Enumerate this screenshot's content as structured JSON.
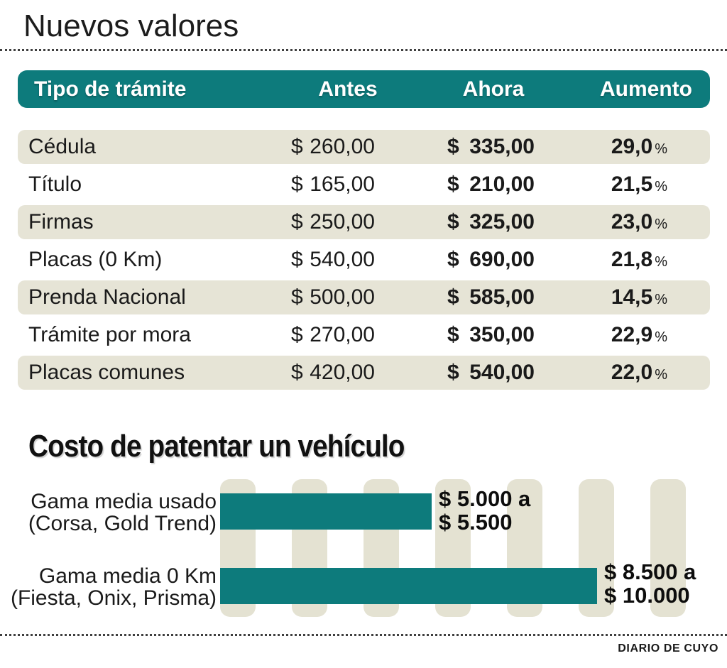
{
  "title": "Nuevos valores",
  "credit": "DIARIO DE CUYO",
  "colors": {
    "teal": "#0d7b7c",
    "beige_row": "#e6e4d6",
    "beige_grid": "#e4e2d2",
    "text": "#1a1a1a"
  },
  "table": {
    "columns": {
      "tipo": "Tipo de trámite",
      "antes": "Antes",
      "ahora": "Ahora",
      "aumento": "Aumento"
    },
    "currency": "$",
    "percent": "%",
    "rows": [
      {
        "tipo": "Cédula",
        "antes": "260,00",
        "ahora": "335,00",
        "aumento": "29,0"
      },
      {
        "tipo": "Título",
        "antes": "165,00",
        "ahora": "210,00",
        "aumento": "21,5"
      },
      {
        "tipo": "Firmas",
        "antes": "250,00",
        "ahora": "325,00",
        "aumento": "23,0"
      },
      {
        "tipo": "Placas (0 Km)",
        "antes": "540,00",
        "ahora": "690,00",
        "aumento": "21,8"
      },
      {
        "tipo": "Prenda Nacional",
        "antes": "500,00",
        "ahora": "585,00",
        "aumento": "14,5"
      },
      {
        "tipo": "Trámite por mora",
        "antes": "270,00",
        "ahora": "350,00",
        "aumento": "22,9"
      },
      {
        "tipo": "Placas comunes",
        "antes": "420,00",
        "ahora": "540,00",
        "aumento": "22,0"
      }
    ]
  },
  "chart_data": {
    "type": "bar",
    "orientation": "horizontal",
    "title": "Costo de patentar un vehículo",
    "xlabel": "",
    "ylabel": "",
    "xlim": [
      0,
      11000
    ],
    "gridlines": 7,
    "legend": "none",
    "categories": [
      "Gama media usado (Corsa, Gold Trend)",
      "Gama media 0 Km (Fiesta, Onix, Prisma)"
    ],
    "bars": [
      {
        "category_line1": "Gama media usado",
        "category_line2": "(Corsa, Gold Trend)",
        "range_min": 5000,
        "range_max": 5500,
        "value_label_line1": "$ 5.000 a",
        "value_label_line2": "$ 5.500",
        "length_frac": 0.455
      },
      {
        "category_line1": "Gama media 0 Km",
        "category_line2": "(Fiesta, Onix, Prisma)",
        "range_min": 8500,
        "range_max": 10000,
        "value_label_line1": "$ 8.500 a",
        "value_label_line2": "$ 10.000",
        "length_frac": 0.81
      }
    ]
  }
}
